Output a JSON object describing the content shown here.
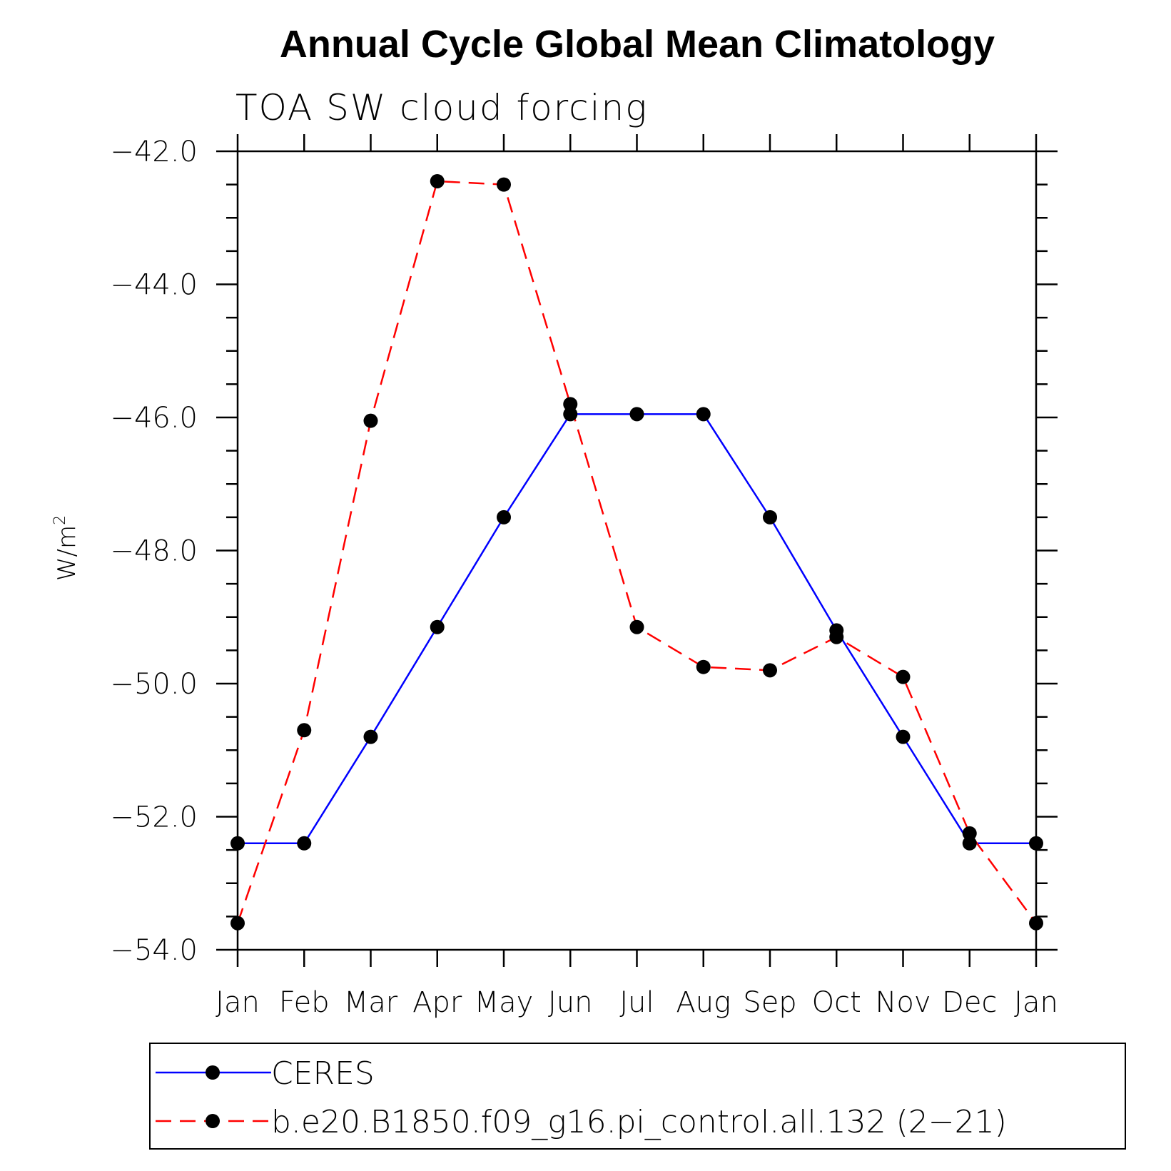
{
  "chart_data": {
    "type": "line",
    "title": "Annual Cycle Global Mean Climatology",
    "subtitle": "TOA SW cloud forcing",
    "ylabel": "W/m",
    "ylabel_superscript": "2",
    "ylim": [
      -54.0,
      -42.0
    ],
    "yticks": [
      -42.0,
      -44.0,
      -46.0,
      -48.0,
      -50.0,
      -52.0,
      -54.0
    ],
    "ytick_labels": [
      "−42.0",
      "−44.0",
      "−46.0",
      "−48.0",
      "−50.0",
      "−52.0",
      "−54.0"
    ],
    "categories": [
      "Jan",
      "Feb",
      "Mar",
      "Apr",
      "May",
      "Jun",
      "Jul",
      "Aug",
      "Sep",
      "Oct",
      "Nov",
      "Dec",
      "Jan"
    ],
    "grid": false,
    "legend_position": "bottom",
    "series": [
      {
        "name": "CERES",
        "color": "#0000ff",
        "dash": "solid",
        "marker": "filled-circle",
        "values": [
          -52.4,
          -52.4,
          -50.8,
          -49.15,
          -47.5,
          -45.95,
          -45.95,
          -45.95,
          -47.5,
          -49.2,
          -50.8,
          -52.4,
          -52.4
        ]
      },
      {
        "name": "b.e20.B1850.f09_g16.pi_control.all.132 (2−21)",
        "color": "#ff0000",
        "dash": "dashed",
        "marker": "filled-circle",
        "values": [
          -53.6,
          -50.7,
          -46.05,
          -42.45,
          -42.5,
          -45.8,
          -49.15,
          -49.75,
          -49.8,
          -49.3,
          -49.9,
          -52.25,
          -53.6
        ]
      }
    ]
  }
}
